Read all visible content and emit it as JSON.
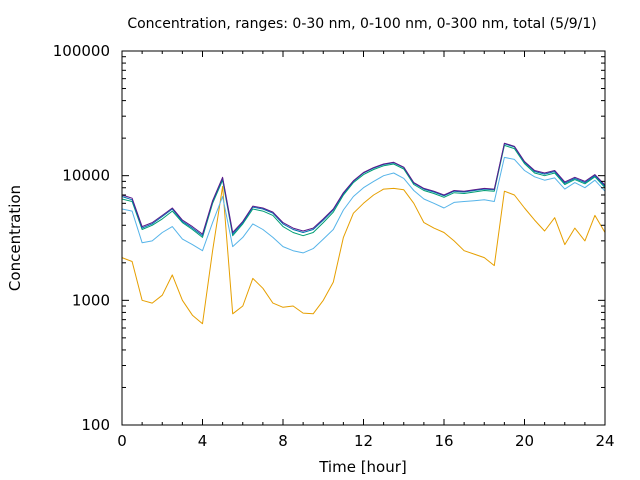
{
  "chart_data": {
    "type": "line",
    "title": "Concentration, ranges: 0-30 nm, 0-100 nm, 0-300 nm, total (5/9/1)",
    "xlabel": "Time [hour]",
    "ylabel": "Concentration",
    "xlim": [
      0,
      24
    ],
    "ylim": [
      100,
      100000
    ],
    "yscale": "log",
    "x_ticks": [
      0,
      4,
      8,
      12,
      16,
      20,
      24
    ],
    "x_tick_labels": [
      "0",
      "4",
      "8",
      "12",
      "16",
      "20",
      "24"
    ],
    "y_ticks": [
      100,
      1000,
      10000,
      100000
    ],
    "y_tick_labels": [
      "100",
      "1000",
      "10000",
      "100000"
    ],
    "grid": false,
    "x": [
      0,
      0.5,
      1,
      1.5,
      2,
      2.5,
      3,
      3.5,
      4,
      4.5,
      5,
      5.5,
      6,
      6.5,
      7,
      7.5,
      8,
      8.5,
      9,
      9.5,
      10,
      10.5,
      11,
      11.5,
      12,
      12.5,
      13,
      13.5,
      14,
      14.5,
      15,
      15.5,
      16,
      16.5,
      17,
      17.5,
      18,
      18.5,
      19,
      19.5,
      20,
      20.5,
      21,
      21.5,
      22,
      22.5,
      23,
      23.5,
      24
    ],
    "series": [
      {
        "color": "#e69f00",
        "values": [
          2200,
          2050,
          1000,
          950,
          1100,
          1600,
          1000,
          760,
          650,
          2500,
          8200,
          780,
          900,
          1500,
          1250,
          950,
          880,
          900,
          790,
          780,
          1000,
          1400,
          3200,
          5000,
          6000,
          7000,
          7800,
          7900,
          7700,
          6000,
          4200,
          3800,
          3500,
          3000,
          2500,
          2350,
          2200,
          1900,
          7500,
          7000,
          5500,
          4400,
          3600,
          4600,
          2800,
          3800,
          3000,
          4800,
          3500
        ]
      },
      {
        "color": "#56b4e9",
        "values": [
          5400,
          5200,
          2900,
          3000,
          3500,
          3900,
          3100,
          2800,
          2500,
          4200,
          6800,
          2700,
          3200,
          4100,
          3700,
          3200,
          2700,
          2500,
          2400,
          2600,
          3100,
          3700,
          5300,
          6800,
          8000,
          9000,
          10000,
          10500,
          9500,
          7600,
          6500,
          6000,
          5500,
          6100,
          6200,
          6300,
          6400,
          6200,
          14000,
          13500,
          11000,
          9800,
          9200,
          9600,
          7800,
          8800,
          8000,
          9200,
          7500
        ]
      },
      {
        "color": "#009e73",
        "values": [
          6500,
          6200,
          3700,
          4000,
          4500,
          5200,
          4200,
          3700,
          3200,
          6000,
          9200,
          3300,
          4100,
          5400,
          5200,
          4800,
          3900,
          3500,
          3300,
          3500,
          4200,
          5100,
          7000,
          8800,
          10200,
          11200,
          12000,
          12400,
          11300,
          8500,
          7600,
          7200,
          6700,
          7300,
          7200,
          7400,
          7600,
          7500,
          17500,
          16500,
          12500,
          10500,
          10000,
          10500,
          8500,
          9300,
          8600,
          9800,
          8000
        ]
      },
      {
        "color": "#0072b2",
        "values": [
          6800,
          6400,
          3800,
          4100,
          4700,
          5400,
          4300,
          3800,
          3300,
          6200,
          9500,
          3400,
          4200,
          5600,
          5400,
          5000,
          4100,
          3700,
          3500,
          3700,
          4400,
          5300,
          7200,
          9000,
          10500,
          11500,
          12300,
          12700,
          11600,
          8700,
          7800,
          7400,
          6900,
          7500,
          7400,
          7600,
          7800,
          7700,
          18000,
          17000,
          12800,
          10800,
          10300,
          10800,
          8700,
          9500,
          8800,
          10000,
          8200
        ]
      },
      {
        "color": "#5a1a8a",
        "values": [
          7000,
          6600,
          3900,
          4200,
          4800,
          5500,
          4400,
          3900,
          3400,
          6300,
          9700,
          3500,
          4300,
          5700,
          5500,
          5100,
          4200,
          3800,
          3600,
          3800,
          4500,
          5400,
          7300,
          9100,
          10600,
          11600,
          12400,
          12800,
          11700,
          8800,
          7900,
          7500,
          7000,
          7600,
          7500,
          7700,
          7900,
          7800,
          18200,
          17200,
          13000,
          11000,
          10500,
          11000,
          8900,
          9700,
          9000,
          10200,
          8400
        ]
      }
    ]
  }
}
